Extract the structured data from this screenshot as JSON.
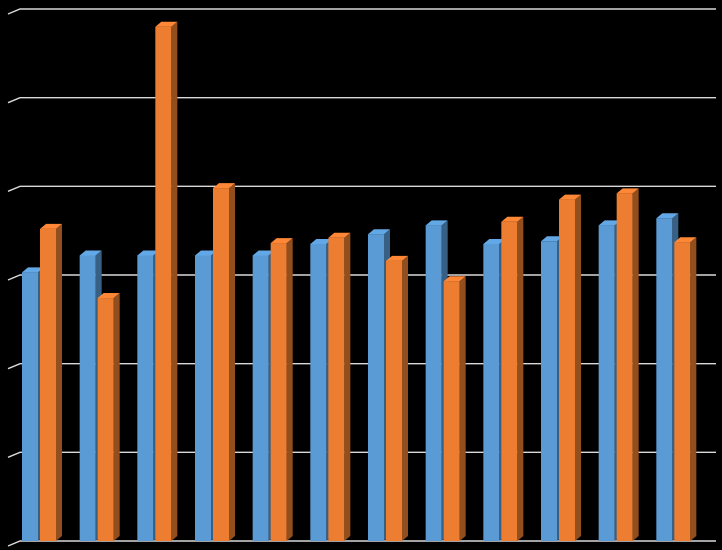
{
  "chart_data": {
    "type": "bar",
    "style": "3d-clustered-column",
    "grid": true,
    "legend": "none",
    "ylim": [
      0,
      6
    ],
    "categories": [
      "",
      "",
      "",
      "",
      "",
      "",
      "",
      "",
      "",
      "",
      "",
      ""
    ],
    "series": [
      {
        "color": "#5B9BD5",
        "values": [
          3.03,
          3.22,
          3.22,
          3.22,
          3.22,
          3.35,
          3.46,
          3.56,
          3.35,
          3.38,
          3.56,
          3.64
        ]
      },
      {
        "color": "#ED7D31",
        "values": [
          3.52,
          2.74,
          5.8,
          3.98,
          3.36,
          3.42,
          3.16,
          2.93,
          3.6,
          3.85,
          3.92,
          3.37
        ]
      }
    ]
  }
}
